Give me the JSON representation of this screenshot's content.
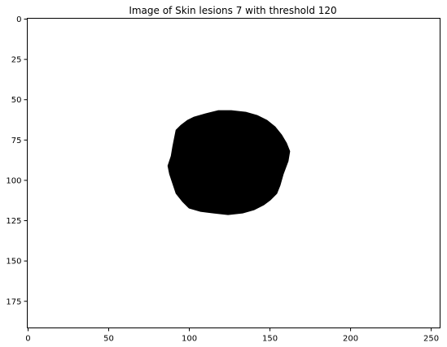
{
  "title": "Image of Skin lesions 7 with threshold 120",
  "image": {
    "width": 256,
    "height": 192,
    "background": "#ffffff",
    "foreground": "#000000",
    "lesion_description": "binary thresholded lesion mask"
  },
  "x_axis": {
    "ticks": [
      0,
      50,
      100,
      150,
      200,
      250
    ],
    "labels": [
      "0",
      "50",
      "100",
      "150",
      "200",
      "250"
    ],
    "range": [
      -0.5,
      255.5
    ]
  },
  "y_axis": {
    "ticks": [
      0,
      25,
      50,
      75,
      100,
      125,
      150,
      175
    ],
    "labels": [
      "0",
      "25",
      "50",
      "75",
      "100",
      "125",
      "150",
      "175"
    ],
    "range": [
      -0.5,
      191.5
    ],
    "inverted": true
  },
  "lesion_outline": [
    [
      103,
      61
    ],
    [
      110,
      59
    ],
    [
      118,
      57
    ],
    [
      126,
      57
    ],
    [
      135,
      58
    ],
    [
      142,
      60
    ],
    [
      148,
      63
    ],
    [
      153,
      67
    ],
    [
      157,
      72
    ],
    [
      160,
      77
    ],
    [
      162,
      82
    ],
    [
      161,
      88
    ],
    [
      158,
      96
    ],
    [
      156,
      103
    ],
    [
      154,
      108
    ],
    [
      150,
      112
    ],
    [
      146,
      115
    ],
    [
      140,
      118
    ],
    [
      133,
      120
    ],
    [
      124,
      121
    ],
    [
      115,
      120
    ],
    [
      107,
      119
    ],
    [
      100,
      117
    ],
    [
      96,
      113
    ],
    [
      92,
      108
    ],
    [
      90,
      102
    ],
    [
      88,
      96
    ],
    [
      87,
      91
    ],
    [
      89,
      85
    ],
    [
      90,
      79
    ],
    [
      91,
      74
    ],
    [
      92,
      69
    ],
    [
      95,
      66
    ],
    [
      99,
      63
    ]
  ]
}
